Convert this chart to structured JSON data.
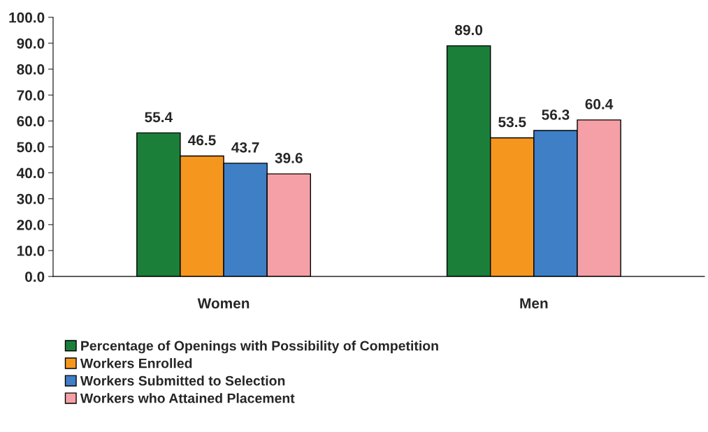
{
  "chart_data": {
    "type": "bar",
    "categories": [
      "Women",
      "Men"
    ],
    "series": [
      {
        "name": "Percentage of Openings with Possibility of Competition",
        "color": "#1b7f3a",
        "values": [
          55.4,
          89.0
        ]
      },
      {
        "name": "Workers Enrolled",
        "color": "#f5971f",
        "values": [
          46.5,
          53.5
        ]
      },
      {
        "name": "Workers Submitted to Selection",
        "color": "#3f7fc6",
        "values": [
          43.7,
          56.3
        ]
      },
      {
        "name": "Workers who Attained Placement",
        "color": "#f4a0a6",
        "values": [
          39.6,
          60.4
        ]
      }
    ],
    "value_labels": [
      [
        "55.4",
        "89.0"
      ],
      [
        "46.5",
        "53.5"
      ],
      [
        "43.7",
        "56.3"
      ],
      [
        "39.6",
        "60.4"
      ]
    ],
    "ylim": [
      0,
      100
    ],
    "yticks": [
      {
        "value": 0,
        "label": "0.0"
      },
      {
        "value": 10,
        "label": "10.0"
      },
      {
        "value": 20,
        "label": "20.0"
      },
      {
        "value": 30,
        "label": "30.0"
      },
      {
        "value": 40,
        "label": "40.0"
      },
      {
        "value": 50,
        "label": "50.0"
      },
      {
        "value": 60,
        "label": "60.0"
      },
      {
        "value": 70,
        "label": "70.0"
      },
      {
        "value": 80,
        "label": "80.0"
      },
      {
        "value": 90,
        "label": "90.0"
      },
      {
        "value": 100,
        "label": "100.0"
      }
    ],
    "grid": false,
    "legend": "bottom left"
  }
}
